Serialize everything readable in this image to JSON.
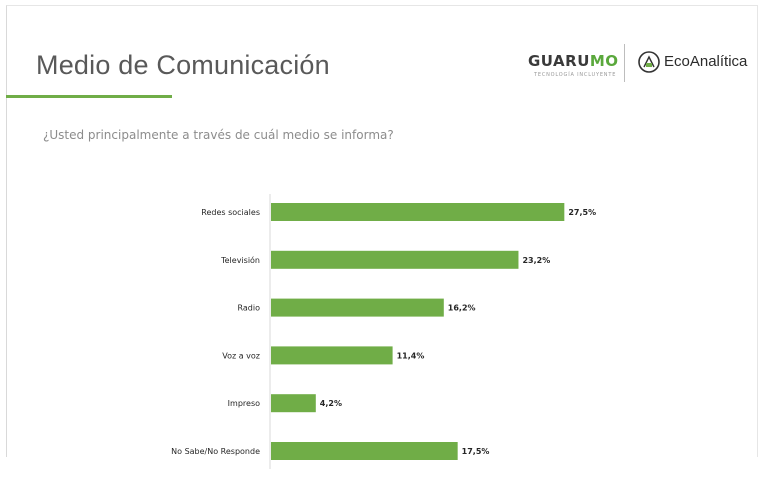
{
  "header": {
    "title": "Medio de Comunicación",
    "question": "¿Usted principalmente a través de cuál medio se informa?"
  },
  "logos": {
    "guarumo_a": "GUARU",
    "guarumo_b": "MO",
    "guarumo_tagline": "TECNOLOGÍA INCLUYENTE",
    "ecoanalitica": "EcoAnalítica"
  },
  "colors": {
    "bar": "#70ad47",
    "accent_line": "#70ad47",
    "title": "#595959"
  },
  "chart_data": {
    "type": "bar",
    "orientation": "horizontal",
    "categories": [
      "Redes sociales",
      "Televisión",
      "Radio",
      "Voz a voz",
      "Impreso",
      "No Sabe/No Responde"
    ],
    "values": [
      27.5,
      23.2,
      16.2,
      11.4,
      4.2,
      17.5
    ],
    "value_labels": [
      "27,5%",
      "23,2%",
      "16,2%",
      "11,4%",
      "4,2%",
      "17,5%"
    ],
    "title": "",
    "xlabel": "",
    "ylabel": "",
    "xlim": [
      0,
      30
    ],
    "grid": false,
    "legend": "none"
  }
}
